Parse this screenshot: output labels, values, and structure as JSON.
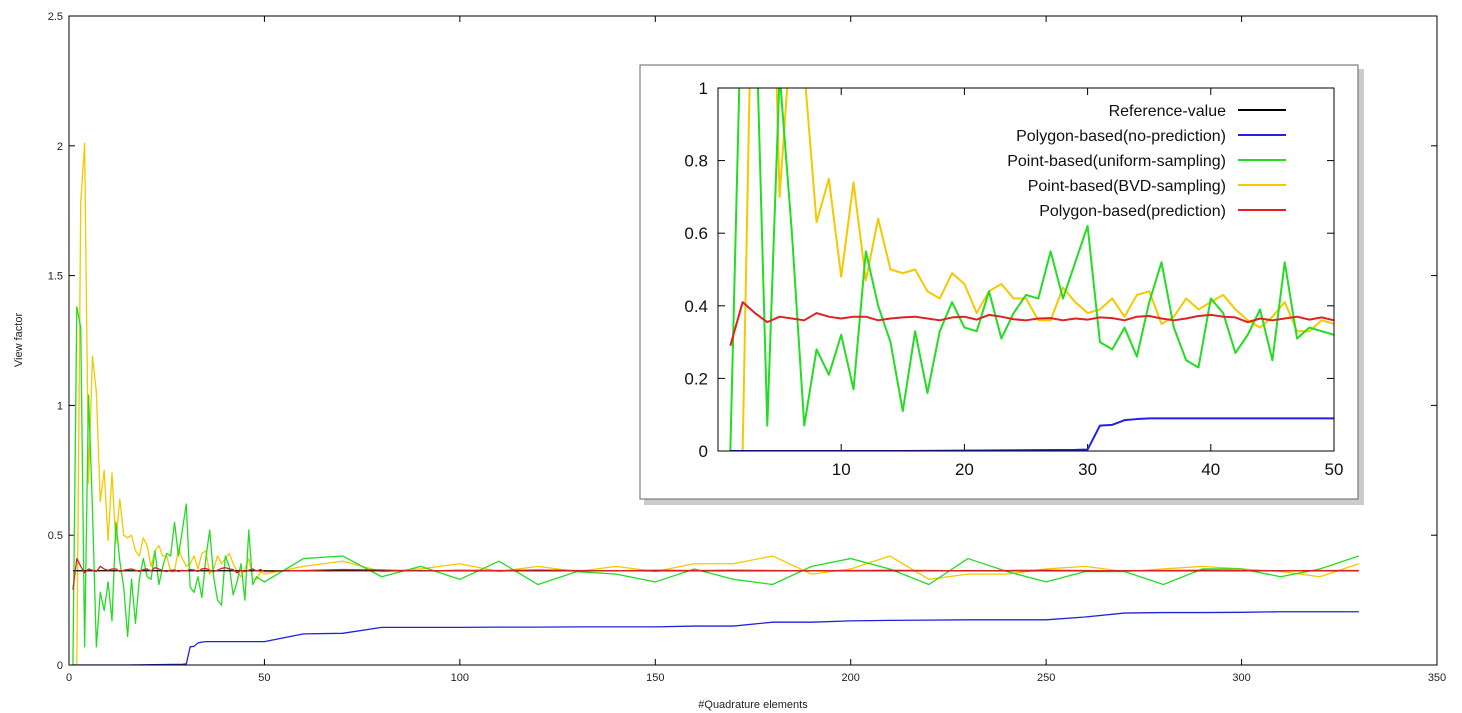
{
  "chart_data": [
    {
      "id": "main",
      "type": "line",
      "title": "",
      "xlabel": "#Quadrature elements",
      "ylabel": "View factor",
      "xlim": [
        0,
        350
      ],
      "ylim": [
        0,
        2.5
      ],
      "xticks": [
        0,
        50,
        100,
        150,
        200,
        250,
        300,
        350
      ],
      "yticks": [
        0,
        0.5,
        1,
        1.5,
        2,
        2.5
      ],
      "grid": false,
      "series": [
        {
          "key": "ref",
          "color": "#000000",
          "x": [
            1,
            330
          ],
          "y": [
            0.363,
            0.363
          ]
        },
        {
          "key": "poly_np",
          "color": "#2222dd",
          "x": [
            1,
            15,
            29,
            30,
            31,
            32,
            33,
            34,
            35,
            40,
            45,
            50,
            60,
            70,
            80,
            90,
            100,
            110,
            120,
            130,
            140,
            150,
            160,
            170,
            180,
            190,
            200,
            210,
            220,
            230,
            240,
            250,
            260,
            270,
            280,
            290,
            300,
            310,
            320,
            330
          ],
          "y": [
            0,
            0,
            0.003,
            0.004,
            0.07,
            0.072,
            0.085,
            0.088,
            0.09,
            0.09,
            0.09,
            0.09,
            0.12,
            0.122,
            0.145,
            0.145,
            0.145,
            0.146,
            0.146,
            0.147,
            0.147,
            0.147,
            0.15,
            0.15,
            0.165,
            0.165,
            0.17,
            0.172,
            0.173,
            0.174,
            0.174,
            0.174,
            0.185,
            0.2,
            0.202,
            0.202,
            0.203,
            0.205,
            0.205,
            0.205
          ]
        },
        {
          "key": "pt_uni",
          "color": "#22dd22",
          "x": [
            1,
            2,
            3,
            4,
            5,
            6,
            7,
            8,
            9,
            10,
            11,
            12,
            13,
            14,
            15,
            16,
            17,
            18,
            19,
            20,
            21,
            22,
            23,
            24,
            25,
            26,
            27,
            28,
            29,
            30,
            31,
            32,
            33,
            34,
            35,
            36,
            37,
            38,
            39,
            40,
            41,
            42,
            43,
            44,
            45,
            46,
            47,
            48,
            49,
            50,
            60,
            70,
            80,
            90,
            100,
            110,
            120,
            130,
            140,
            150,
            160,
            170,
            180,
            190,
            200,
            210,
            220,
            230,
            240,
            250,
            260,
            270,
            280,
            290,
            300,
            310,
            320,
            330
          ],
          "y": [
            0,
            1.38,
            1.3,
            0.07,
            1.04,
            0.6,
            0.07,
            0.28,
            0.21,
            0.32,
            0.17,
            0.55,
            0.4,
            0.3,
            0.11,
            0.33,
            0.16,
            0.33,
            0.41,
            0.34,
            0.33,
            0.44,
            0.31,
            0.38,
            0.43,
            0.42,
            0.55,
            0.42,
            0.52,
            0.62,
            0.3,
            0.28,
            0.34,
            0.26,
            0.41,
            0.52,
            0.34,
            0.25,
            0.23,
            0.42,
            0.38,
            0.27,
            0.32,
            0.39,
            0.25,
            0.52,
            0.31,
            0.34,
            0.33,
            0.32,
            0.41,
            0.42,
            0.34,
            0.38,
            0.33,
            0.4,
            0.31,
            0.36,
            0.35,
            0.32,
            0.37,
            0.33,
            0.31,
            0.38,
            0.41,
            0.37,
            0.31,
            0.41,
            0.36,
            0.32,
            0.36,
            0.36,
            0.31,
            0.37,
            0.37,
            0.34,
            0.37,
            0.42
          ]
        },
        {
          "key": "pt_bvd",
          "color": "#f5c800",
          "x": [
            1,
            2,
            3,
            4,
            5,
            6,
            7,
            8,
            9,
            10,
            11,
            12,
            13,
            14,
            15,
            16,
            17,
            18,
            19,
            20,
            21,
            22,
            23,
            24,
            25,
            26,
            27,
            28,
            29,
            30,
            31,
            32,
            33,
            34,
            35,
            36,
            37,
            38,
            39,
            40,
            41,
            42,
            43,
            44,
            45,
            46,
            47,
            48,
            49,
            50,
            60,
            70,
            80,
            90,
            100,
            110,
            120,
            130,
            140,
            150,
            160,
            170,
            180,
            190,
            200,
            210,
            220,
            230,
            240,
            250,
            260,
            270,
            280,
            290,
            300,
            310,
            320,
            330
          ],
          "y": [
            0,
            0,
            1.78,
            2.01,
            0.7,
            1.19,
            1.05,
            0.63,
            0.75,
            0.48,
            0.74,
            0.47,
            0.64,
            0.5,
            0.49,
            0.5,
            0.44,
            0.42,
            0.49,
            0.46,
            0.38,
            0.44,
            0.46,
            0.42,
            0.42,
            0.36,
            0.36,
            0.45,
            0.41,
            0.38,
            0.39,
            0.42,
            0.37,
            0.43,
            0.44,
            0.35,
            0.37,
            0.42,
            0.39,
            0.41,
            0.43,
            0.39,
            0.36,
            0.34,
            0.37,
            0.41,
            0.33,
            0.33,
            0.36,
            0.35,
            0.38,
            0.4,
            0.36,
            0.37,
            0.39,
            0.36,
            0.38,
            0.36,
            0.38,
            0.36,
            0.39,
            0.39,
            0.42,
            0.35,
            0.37,
            0.42,
            0.33,
            0.35,
            0.35,
            0.37,
            0.38,
            0.36,
            0.37,
            0.38,
            0.37,
            0.36,
            0.34,
            0.39
          ]
        },
        {
          "key": "poly_p",
          "color": "#dd2222",
          "x": [
            1,
            2,
            3,
            4,
            5,
            6,
            7,
            8,
            9,
            10,
            11,
            12,
            13,
            14,
            15,
            16,
            17,
            18,
            19,
            20,
            21,
            22,
            23,
            24,
            25,
            26,
            27,
            28,
            29,
            30,
            31,
            32,
            33,
            34,
            35,
            36,
            37,
            38,
            39,
            40,
            41,
            42,
            43,
            44,
            45,
            46,
            47,
            48,
            49,
            50,
            60,
            70,
            80,
            90,
            100,
            110,
            120,
            130,
            140,
            150,
            160,
            170,
            180,
            190,
            200,
            210,
            220,
            230,
            240,
            250,
            260,
            270,
            280,
            290,
            300,
            310,
            320,
            330
          ],
          "y": [
            0.29,
            0.41,
            0.38,
            0.355,
            0.37,
            0.365,
            0.36,
            0.38,
            0.37,
            0.365,
            0.37,
            0.37,
            0.36,
            0.365,
            0.368,
            0.37,
            0.365,
            0.36,
            0.368,
            0.37,
            0.362,
            0.375,
            0.37,
            0.363,
            0.36,
            0.365,
            0.366,
            0.36,
            0.365,
            0.362,
            0.368,
            0.366,
            0.36,
            0.37,
            0.372,
            0.365,
            0.36,
            0.365,
            0.372,
            0.375,
            0.37,
            0.368,
            0.355,
            0.365,
            0.36,
            0.365,
            0.37,
            0.362,
            0.368,
            0.36,
            0.364,
            0.368,
            0.366,
            0.362,
            0.365,
            0.364,
            0.366,
            0.364,
            0.363,
            0.365,
            0.364,
            0.365,
            0.364,
            0.363,
            0.364,
            0.365,
            0.364,
            0.363,
            0.364,
            0.365,
            0.364,
            0.363,
            0.364,
            0.365,
            0.364,
            0.363,
            0.364,
            0.364
          ]
        }
      ]
    },
    {
      "id": "inset",
      "type": "line",
      "title": "",
      "xlabel": "",
      "ylabel": "",
      "xlim": [
        0,
        50
      ],
      "ylim": [
        0,
        1
      ],
      "xticks": [
        10,
        20,
        30,
        40,
        50
      ],
      "yticks": [
        0,
        0.2,
        0.4,
        0.6,
        0.8,
        1
      ],
      "grid": false,
      "legend_position": "top-right",
      "legend": [
        {
          "key": "ref",
          "name": "Reference-value",
          "color": "#000000"
        },
        {
          "key": "poly_np",
          "name": "Polygon-based(no-prediction)",
          "color": "#2222dd"
        },
        {
          "key": "pt_uni",
          "name": "Point-based(uniform-sampling)",
          "color": "#22dd22"
        },
        {
          "key": "pt_bvd",
          "name": "Point-based(BVD-sampling)",
          "color": "#f5c800"
        },
        {
          "key": "poly_p",
          "name": "Polygon-based(prediction)",
          "color": "#dd2222"
        }
      ],
      "series_source": "main"
    }
  ]
}
